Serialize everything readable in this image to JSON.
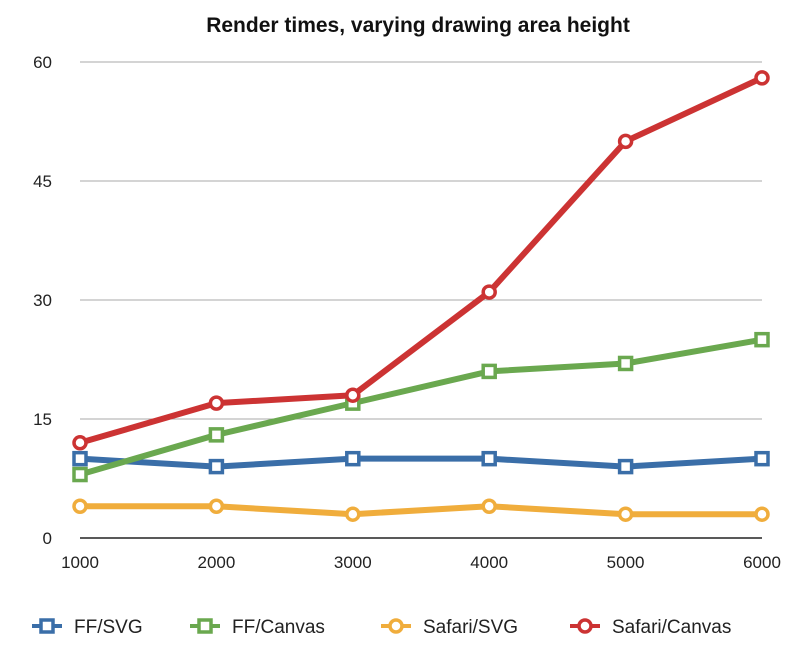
{
  "chart_data": {
    "type": "line",
    "title": "Render times, varying drawing area height",
    "xlabel": "",
    "ylabel": "",
    "x": [
      1000,
      2000,
      3000,
      4000,
      5000,
      6000
    ],
    "x_tick_labels": [
      "1000",
      "2000",
      "3000",
      "4000",
      "5000",
      "6000"
    ],
    "y_tick_labels": [
      "0",
      "15",
      "30",
      "45",
      "60"
    ],
    "ylim": [
      0,
      60
    ],
    "y_ticks": [
      0,
      15,
      30,
      45,
      60
    ],
    "grid": "horizontal",
    "legend_position": "bottom",
    "series": [
      {
        "name": "FF/SVG",
        "color": "#3a6ea8",
        "marker": "square",
        "values": [
          10,
          9,
          10,
          10,
          9,
          10
        ]
      },
      {
        "name": "FF/Canvas",
        "color": "#6aa84f",
        "marker": "square",
        "values": [
          8,
          13,
          17,
          21,
          22,
          25
        ]
      },
      {
        "name": "Safari/SVG",
        "color": "#f0ad3c",
        "marker": "circle",
        "values": [
          4,
          4,
          3,
          4,
          3,
          3
        ]
      },
      {
        "name": "Safari/Canvas",
        "color": "#cc3333",
        "marker": "circle",
        "values": [
          12,
          17,
          18,
          31,
          50,
          58
        ]
      }
    ]
  }
}
